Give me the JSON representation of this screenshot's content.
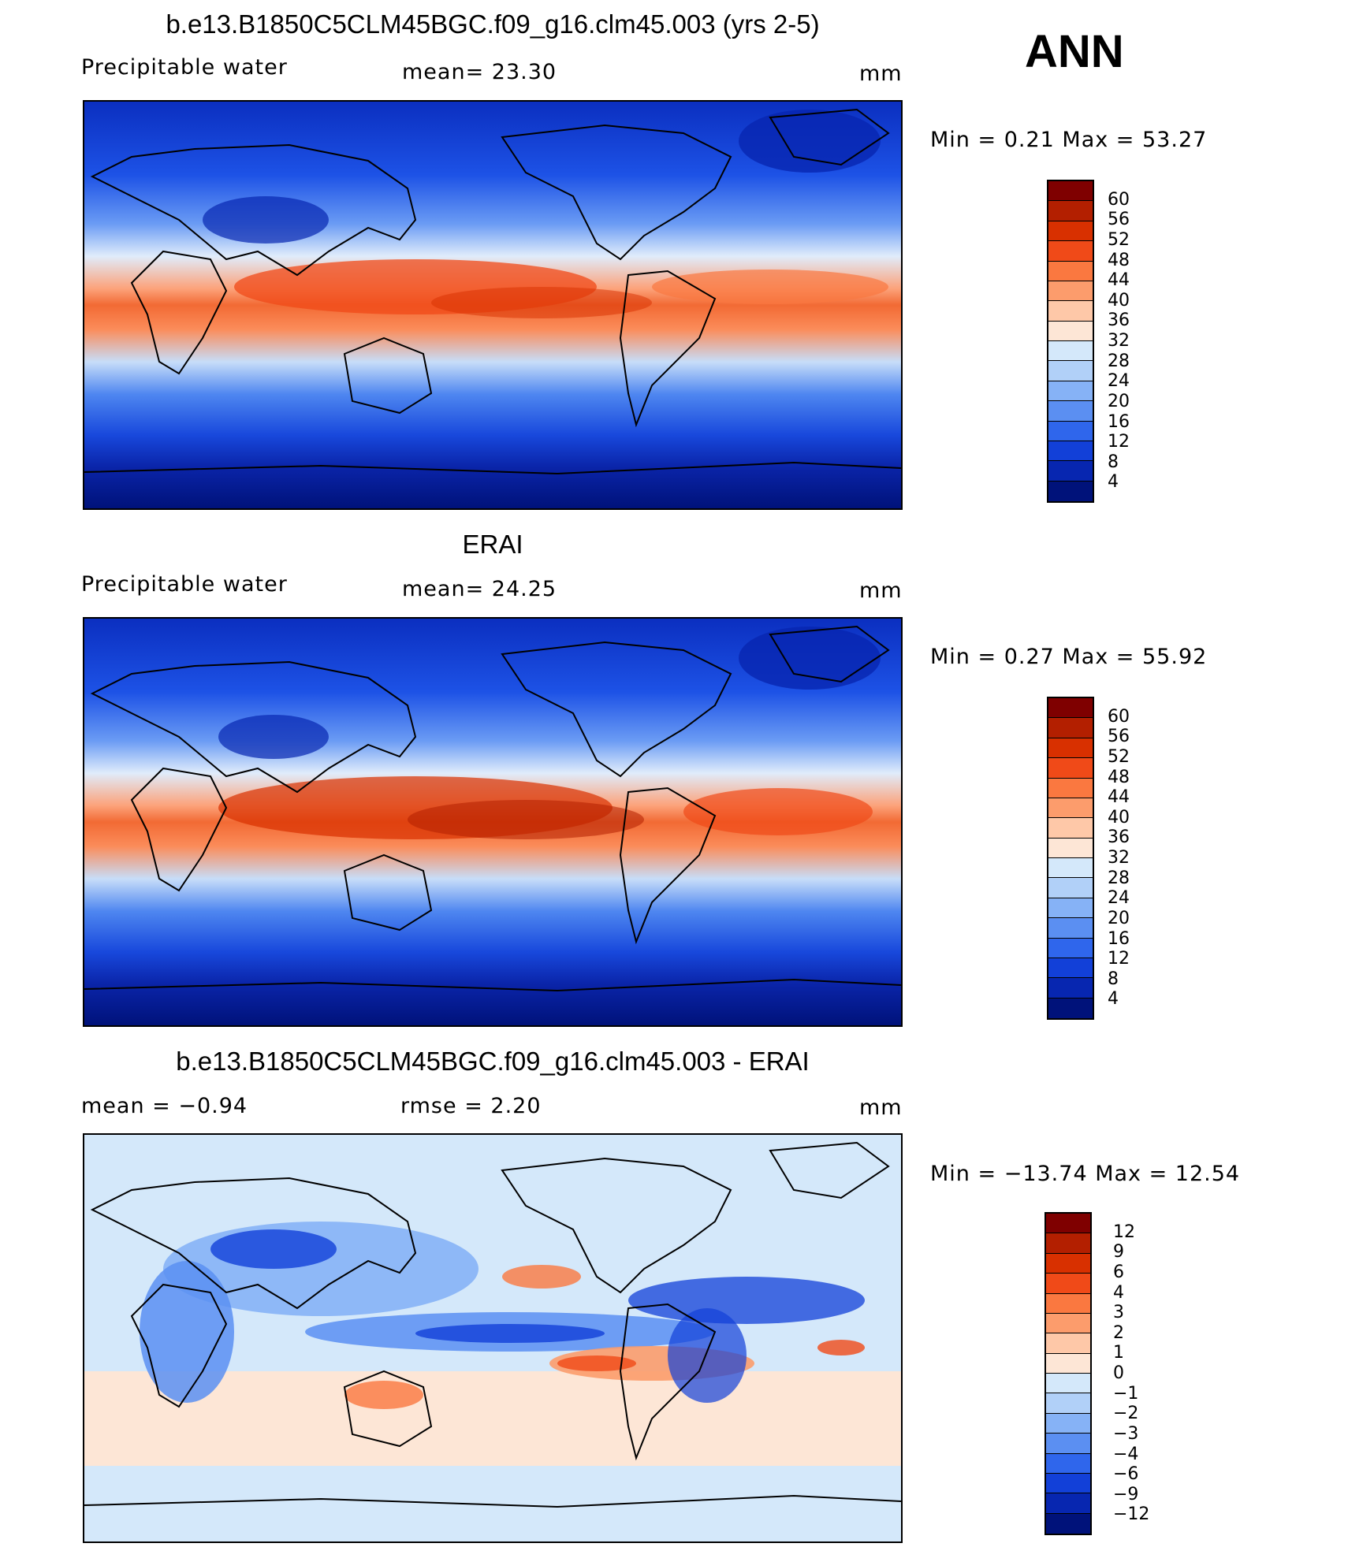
{
  "season": "ANN",
  "panels": [
    {
      "title": "b.e13.B1850C5CLM45BGC.f09_g16.clm45.003 (yrs 2-5)",
      "left_label": "Precipitable  water",
      "center_label": "mean=   23.30",
      "units": "mm",
      "minmax": "Min  =     0.21  Max  =    53.27",
      "levels": [
        "60",
        "56",
        "52",
        "48",
        "44",
        "40",
        "36",
        "32",
        "28",
        "24",
        "20",
        "16",
        "12",
        "8",
        "4"
      ],
      "colors": [
        "#7f0000",
        "#b31f00",
        "#d83000",
        "#f04a18",
        "#fa7840",
        "#fc9c6c",
        "#fec8a8",
        "#fde6d6",
        "#d4e8fa",
        "#b1d0f8",
        "#86b2f6",
        "#5b8ff2",
        "#2f66ec",
        "#1240d8",
        "#0726b0",
        "#00127a"
      ]
    },
    {
      "title": "ERAI",
      "left_label": "Precipitable  water",
      "center_label": "mean=   24.25",
      "units": "mm",
      "minmax": "Min  =     0.27  Max  =    55.92",
      "levels": [
        "60",
        "56",
        "52",
        "48",
        "44",
        "40",
        "36",
        "32",
        "28",
        "24",
        "20",
        "16",
        "12",
        "8",
        "4"
      ],
      "colors": [
        "#7f0000",
        "#b31f00",
        "#d83000",
        "#f04a18",
        "#fa7840",
        "#fc9c6c",
        "#fec8a8",
        "#fde6d6",
        "#d4e8fa",
        "#b1d0f8",
        "#86b2f6",
        "#5b8ff2",
        "#2f66ec",
        "#1240d8",
        "#0726b0",
        "#00127a"
      ]
    },
    {
      "title": "b.e13.B1850C5CLM45BGC.f09_g16.clm45.003 - ERAI",
      "left_label": "mean  =   −0.94",
      "center_label": "rmse  =     2.20",
      "units": "mm",
      "minmax": "Min  =  −13.74  Max  =    12.54",
      "levels": [
        "12",
        "9",
        "6",
        "4",
        "3",
        "2",
        "1",
        "0",
        "−1",
        "−2",
        "−3",
        "−4",
        "−6",
        "−9",
        "−12"
      ],
      "colors": [
        "#7f0000",
        "#b31f00",
        "#d83000",
        "#f04a18",
        "#fa7840",
        "#fc9c6c",
        "#fec8a8",
        "#fde6d6",
        "#d4e8fa",
        "#b1d0f8",
        "#86b2f6",
        "#5b8ff2",
        "#2f66ec",
        "#1240d8",
        "#0726b0",
        "#00127a"
      ]
    }
  ]
}
